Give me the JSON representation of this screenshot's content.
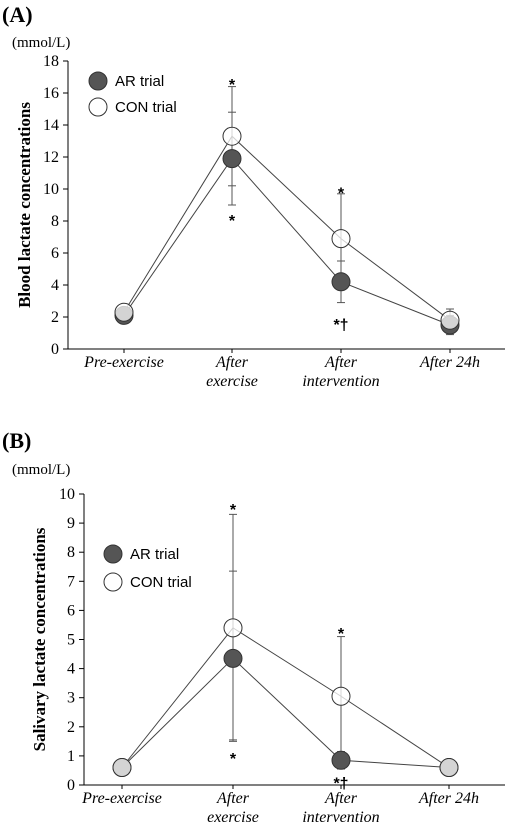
{
  "chart_data": [
    {
      "type": "line",
      "panel_label": "(A)",
      "unit_label": "(mmol/L)",
      "ylabel": "Blood lactate concentrations",
      "ylim": [
        0,
        18
      ],
      "yticks": [
        0,
        2,
        4,
        6,
        8,
        10,
        12,
        14,
        16,
        18
      ],
      "categories": [
        [
          "Pre-exercise"
        ],
        [
          "After",
          "exercise"
        ],
        [
          "After",
          "intervention"
        ],
        [
          "After 24h"
        ]
      ],
      "legend_position": "top-left",
      "series": [
        {
          "name": "AR trial",
          "marker": "filled",
          "color": "#555555",
          "values": [
            2.1,
            11.9,
            4.2,
            1.5
          ],
          "error_up": [
            0.3,
            2.9,
            1.3,
            0.6
          ],
          "error_down": [
            0.3,
            2.9,
            1.3,
            0.6
          ]
        },
        {
          "name": "CON trial",
          "marker": "open",
          "color": "#ffffff",
          "values": [
            2.3,
            13.3,
            6.9,
            1.8
          ],
          "error_up": [
            0.3,
            3.1,
            2.8,
            0.7
          ],
          "error_down": [
            0.3,
            3.1,
            2.8,
            0.7
          ]
        }
      ],
      "annotations": [
        {
          "text": "*",
          "x_index": 1,
          "y": 16.7
        },
        {
          "text": "*",
          "x_index": 1,
          "y": 8.2
        },
        {
          "text": "*",
          "x_index": 2,
          "y": 9.9
        },
        {
          "text": "*†",
          "x_index": 2,
          "y": 1.7
        }
      ]
    },
    {
      "type": "line",
      "panel_label": "(B)",
      "unit_label": "(mmol/L)",
      "ylabel": "Salivary lactate concentrations",
      "ylim": [
        0,
        10
      ],
      "yticks": [
        0,
        1,
        2,
        3,
        4,
        5,
        6,
        7,
        8,
        9,
        10
      ],
      "categories": [
        [
          "Pre-exercise"
        ],
        [
          "After",
          "exercise"
        ],
        [
          "After",
          "intervention"
        ],
        [
          "After 24h"
        ]
      ],
      "legend_position": "middle-left",
      "series": [
        {
          "name": "AR trial",
          "marker": "filled",
          "color": "#555555",
          "values": [
            0.6,
            4.35,
            0.85,
            0.6
          ],
          "error_up": [
            0.05,
            3.0,
            0.3,
            0.05
          ],
          "error_down": [
            0.05,
            2.8,
            0.3,
            0.05
          ]
        },
        {
          "name": "CON trial",
          "marker": "open",
          "color": "#ffffff",
          "values": [
            0.6,
            5.4,
            3.05,
            0.6
          ],
          "error_up": [
            0.05,
            3.9,
            2.05,
            0.05
          ],
          "error_down": [
            0.05,
            3.9,
            2.05,
            0.05
          ]
        }
      ],
      "annotations": [
        {
          "text": "*",
          "x_index": 1,
          "y": 9.55
        },
        {
          "text": "*",
          "x_index": 1,
          "y": 1.0
        },
        {
          "text": "*",
          "x_index": 2,
          "y": 5.3
        },
        {
          "text": "*†",
          "x_index": 2,
          "y": 0.15
        }
      ]
    }
  ]
}
